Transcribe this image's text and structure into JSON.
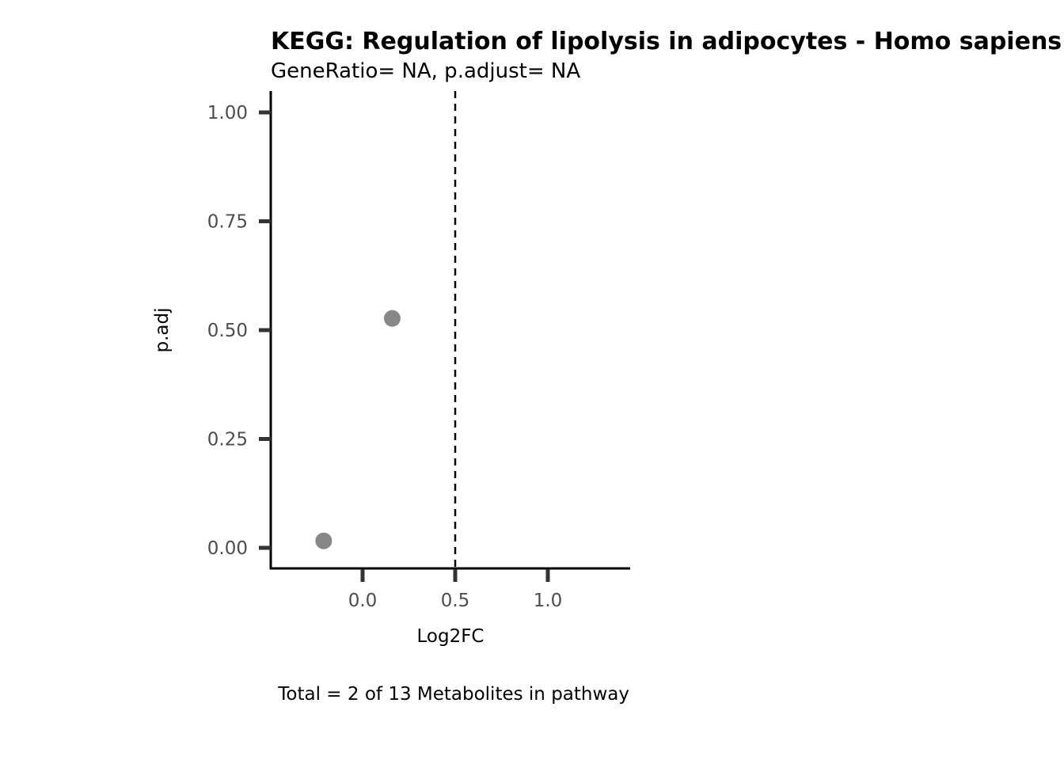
{
  "chart_data": {
    "type": "scatter",
    "title": "KEGG: Regulation of lipolysis in adipocytes - Homo sapiens (human)",
    "subtitle": "GeneRatio= NA, p.adjust= NA",
    "xlabel": "Log2FC",
    "ylabel": "p.adj",
    "caption": "Total = 2 of 13 Metabolites in pathway",
    "xlim": [
      -0.49,
      1.45
    ],
    "ylim": [
      -0.05,
      1.045
    ],
    "x_ticks": [
      0.0,
      0.5,
      1.0
    ],
    "x_tick_labels": [
      "0.0",
      "0.5",
      "1.0"
    ],
    "y_ticks": [
      0.0,
      0.25,
      0.5,
      0.75,
      1.0
    ],
    "y_tick_labels": [
      "0.00",
      "0.25",
      "0.50",
      "0.75",
      "1.00"
    ],
    "reference_line": {
      "x": 0.5,
      "style": "dashed"
    },
    "points": [
      {
        "x": -0.21,
        "y": 0.016
      },
      {
        "x": 0.16,
        "y": 0.527
      }
    ],
    "grid": false,
    "point_color": "#878787"
  }
}
